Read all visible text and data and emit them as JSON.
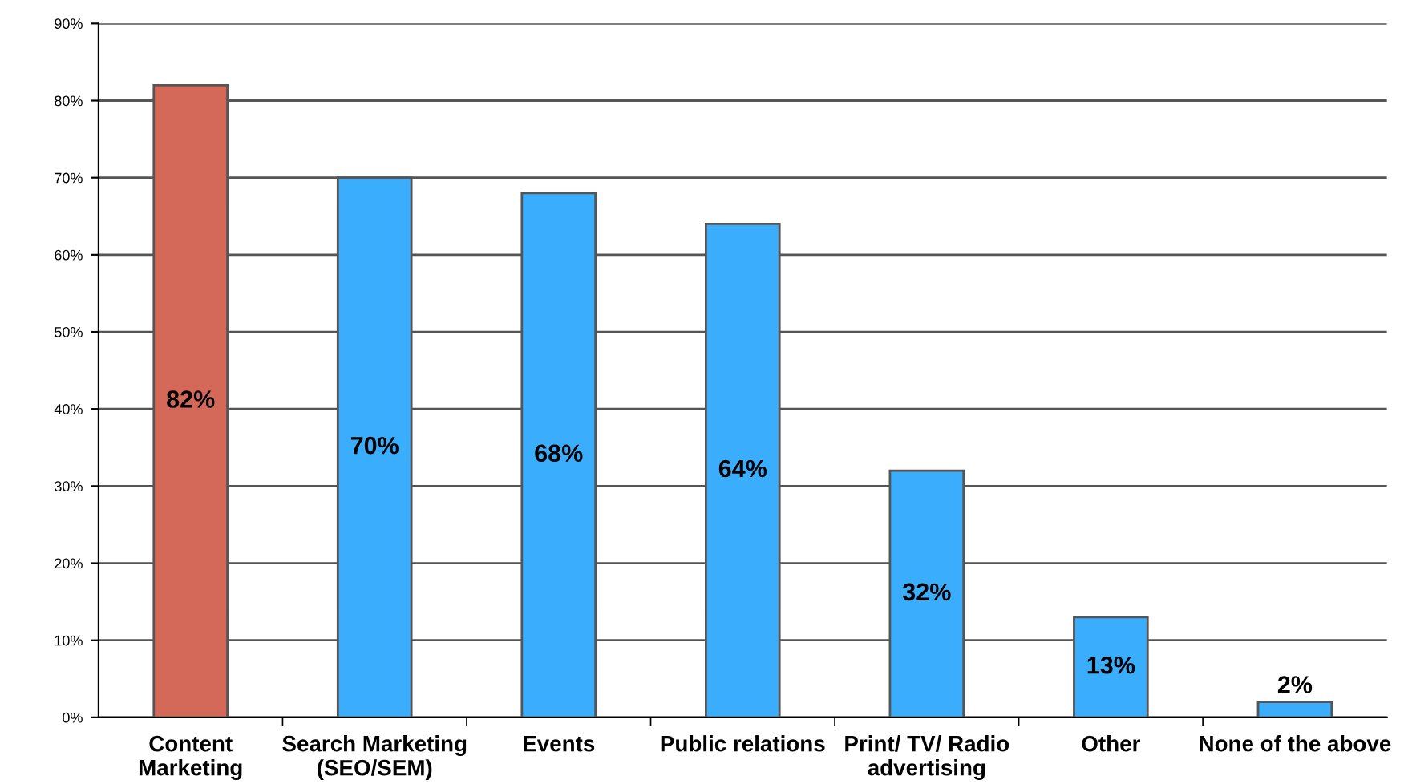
{
  "chart_data": {
    "type": "bar",
    "categories": [
      "Content\nMarketing",
      "Search Marketing\n(SEO/SEM)",
      "Events",
      "Public relations",
      "Print/ TV/ Radio\nadvertising",
      "Other",
      "None of the above"
    ],
    "values": [
      82,
      70,
      68,
      64,
      32,
      13,
      2
    ],
    "value_labels": [
      "82%",
      "70%",
      "68%",
      "64%",
      "32%",
      "13%",
      "2%"
    ],
    "colors": [
      "#d4695a",
      "#3aaefc",
      "#3aaefc",
      "#3aaefc",
      "#3aaefc",
      "#3aaefc",
      "#3aaefc"
    ],
    "ylim": [
      0,
      90
    ],
    "yticks": [
      {
        "value": 0,
        "label": "0%"
      },
      {
        "value": 10,
        "label": "10%"
      },
      {
        "value": 20,
        "label": "20%"
      },
      {
        "value": 30,
        "label": "30%"
      },
      {
        "value": 40,
        "label": "40%"
      },
      {
        "value": 50,
        "label": "50%"
      },
      {
        "value": 60,
        "label": "60%"
      },
      {
        "value": 70,
        "label": "70%"
      },
      {
        "value": 80,
        "label": "80%"
      },
      {
        "value": 90,
        "label": "90%"
      }
    ],
    "grid": "y",
    "legend": false
  }
}
